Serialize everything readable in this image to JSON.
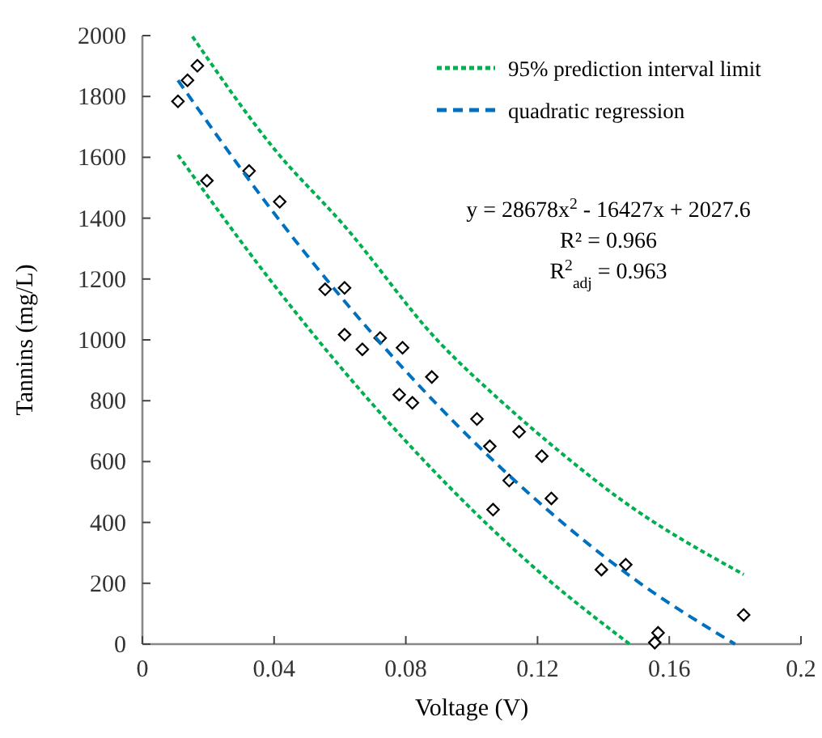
{
  "chart_data": {
    "type": "scatter",
    "xlabel": "Voltage (V)",
    "ylabel": "Tannins (mg/L)",
    "xlim": [
      0,
      0.2
    ],
    "xticks": [
      0,
      0.04,
      0.08,
      0.12,
      0.16,
      0.2
    ],
    "ylim": [
      0,
      2000
    ],
    "yticks": [
      0,
      200,
      400,
      600,
      800,
      1000,
      1200,
      1400,
      1600,
      1800,
      2000
    ],
    "grid": false,
    "legend": "top right",
    "marker": "diamond",
    "series": [
      {
        "color": "#000000",
        "x": [
          0.0108,
          0.0137,
          0.0167,
          0.0196,
          0.0324,
          0.0417,
          0.0555,
          0.0614,
          0.0614,
          0.0668,
          0.0722,
          0.079,
          0.078,
          0.082,
          0.0879,
          0.1016,
          0.1055,
          0.1065,
          0.1114,
          0.1144,
          0.1213,
          0.1242,
          0.1394,
          0.1468,
          0.1556,
          0.1566,
          0.1826
        ],
        "values": [
          1784,
          1853,
          1901,
          1523,
          1555,
          1454,
          1166,
          1171,
          1017,
          969,
          1006,
          974,
          820,
          793,
          878,
          740,
          650,
          442,
          538,
          698,
          618,
          479,
          245,
          261,
          5,
          37,
          96
        ]
      },
      {
        "type": "line",
        "name": "95% prediction interval limit",
        "color": "#00b050",
        "line_style": "dotted",
        "marker": "none",
        "x": [
          0.0152,
          0.04,
          0.0614,
          0.0894,
          0.11,
          0.126,
          0.1448,
          0.1826
        ],
        "values": [
          1997,
          1628,
          1374,
          1001,
          788,
          639,
          479,
          229
        ]
      },
      {
        "type": "line",
        "color": "#00b050",
        "line_style": "dotted",
        "marker": "none",
        "x": [
          0.0108,
          0.04,
          0.08,
          0.12,
          0.148
        ],
        "values": [
          1608,
          1180,
          667,
          242,
          0
        ]
      },
      {
        "type": "line",
        "name": "quadratic regression",
        "color": "#0070c0",
        "line_style": "dashed",
        "marker": "none",
        "x": [
          0.0108,
          0.04,
          0.06,
          0.08,
          0.1,
          0.12,
          0.14,
          0.15,
          0.18
        ],
        "values": [
          1853,
          1416,
          1145,
          897,
          672,
          470,
          290,
          209,
          0
        ]
      }
    ],
    "annotations": [
      "y = 28678x$^{2}$ - 16427x + 2027.6",
      "R² = 0.966",
      "R$^{2}$$_{adj}$ = 0.963"
    ]
  }
}
